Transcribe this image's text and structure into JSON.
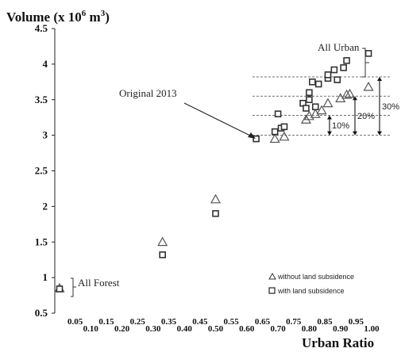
{
  "chart_data": {
    "type": "scatter",
    "title": "",
    "ylabel": "Volume (x 10",
    "ylabel_exp": "6",
    "ylabel_unit": " m",
    "ylabel_unit_exp": "3",
    "ylabel_close": ")",
    "xlabel": "Urban Ratio",
    "ylim": [
      0.5,
      4.5
    ],
    "xlim": [
      0,
      1.0
    ],
    "yticks": [
      "4.5",
      "4",
      "3.5",
      "3",
      "2.5",
      "2",
      "1.5",
      "1",
      "0.5"
    ],
    "xticks_upper": [
      "0.05",
      "0.15",
      "0.25",
      "0.35",
      "0.45",
      "0.55",
      "0.65",
      "0.75",
      "0.85",
      "0.95"
    ],
    "xticks_lower": [
      "0.10",
      "0.20",
      "0.30",
      "0.40",
      "0.50",
      "0.60",
      "0.70",
      "0.80",
      "0.90",
      "1.00"
    ],
    "legend_position": "bottom-right",
    "series": [
      {
        "name": "without land subsidence",
        "marker": "triangle",
        "points": [
          [
            0.0,
            0.85
          ],
          [
            0.33,
            1.5
          ],
          [
            0.5,
            2.1
          ],
          [
            0.69,
            2.95
          ],
          [
            0.72,
            2.98
          ],
          [
            0.79,
            3.22
          ],
          [
            0.8,
            3.27
          ],
          [
            0.82,
            3.3
          ],
          [
            0.84,
            3.35
          ],
          [
            0.86,
            3.45
          ],
          [
            0.9,
            3.52
          ],
          [
            0.92,
            3.57
          ],
          [
            0.93,
            3.58
          ],
          [
            0.99,
            3.68
          ]
        ]
      },
      {
        "name": "with land subsidence",
        "marker": "square",
        "points": [
          [
            0.0,
            0.84
          ],
          [
            0.33,
            1.32
          ],
          [
            0.5,
            1.9
          ],
          [
            0.63,
            2.95
          ],
          [
            0.69,
            3.05
          ],
          [
            0.71,
            3.1
          ],
          [
            0.72,
            3.12
          ],
          [
            0.7,
            3.3
          ],
          [
            0.78,
            3.45
          ],
          [
            0.79,
            3.38
          ],
          [
            0.8,
            3.5
          ],
          [
            0.82,
            3.4
          ],
          [
            0.8,
            3.6
          ],
          [
            0.83,
            3.72
          ],
          [
            0.81,
            3.75
          ],
          [
            0.86,
            3.8
          ],
          [
            0.86,
            3.85
          ],
          [
            0.89,
            3.78
          ],
          [
            0.88,
            3.92
          ],
          [
            0.91,
            3.95
          ],
          [
            0.92,
            4.05
          ],
          [
            0.99,
            4.15
          ]
        ]
      }
    ],
    "reference_lines": [
      3.0,
      3.28,
      3.55,
      3.82
    ],
    "percent_labels": [
      "10%",
      "20%",
      "30%"
    ],
    "annotations": {
      "original": "Original 2013",
      "all_urban": "All Urban",
      "all_forest": "All Forest"
    }
  }
}
